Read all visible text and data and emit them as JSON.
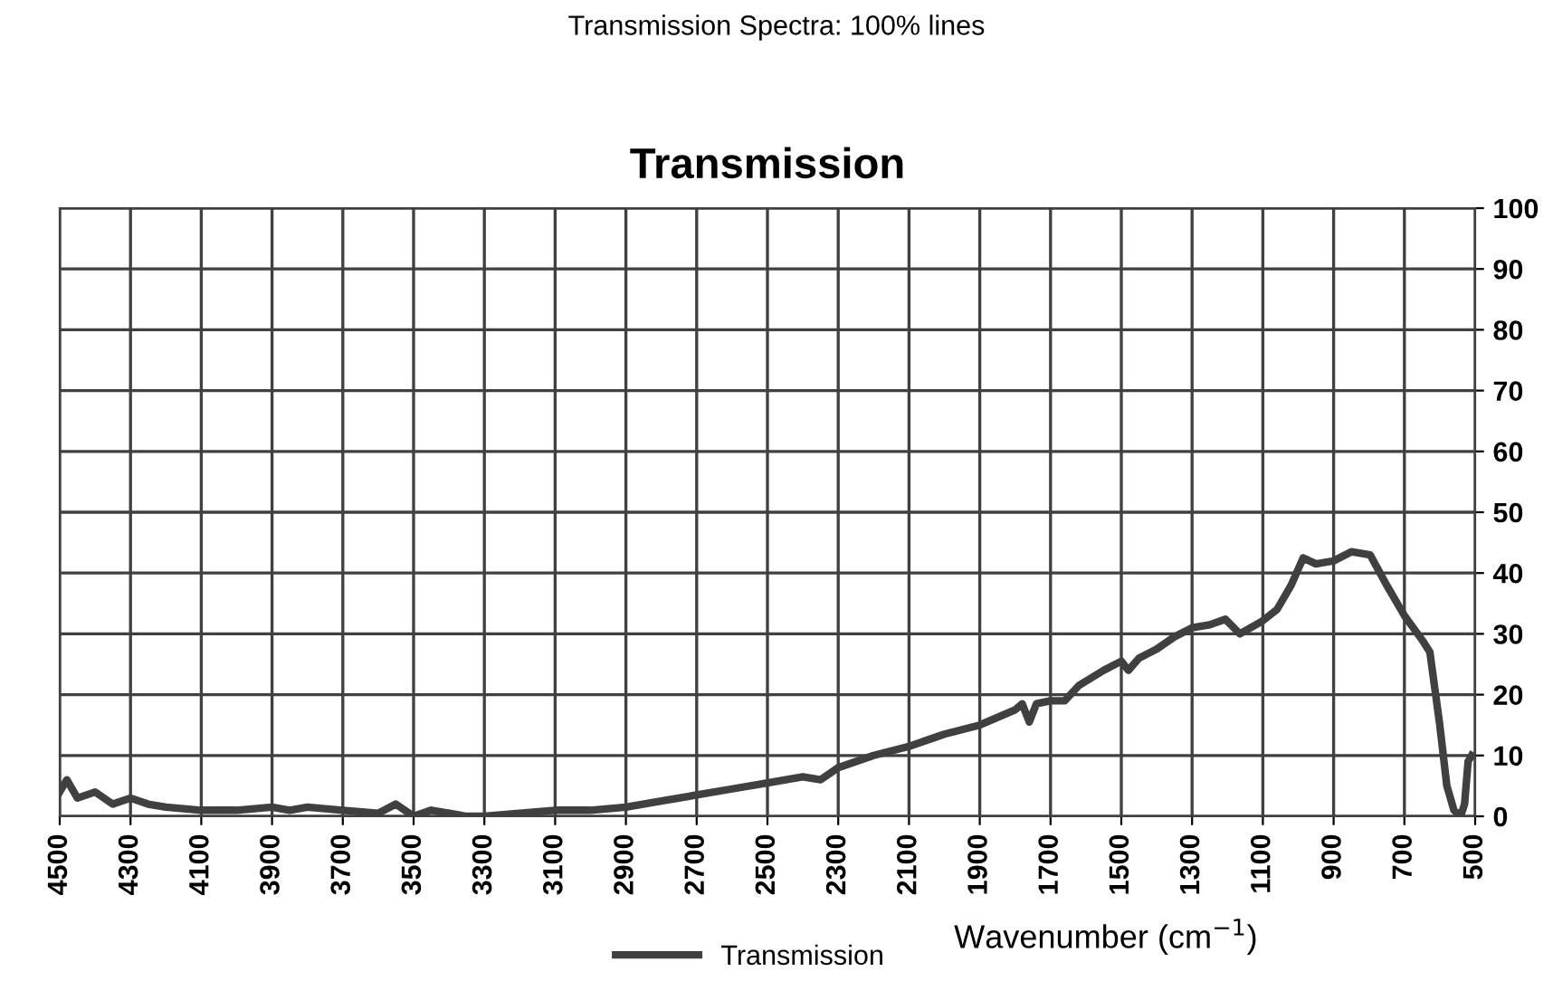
{
  "chart_data": {
    "type": "line",
    "title": "Transmission",
    "subtitle": "Transmission Spectra: 100% lines",
    "xlabel": "Wavenumber (cm$^{−1}$)",
    "x": [
      4500,
      4480,
      4450,
      4400,
      4350,
      4300,
      4250,
      4200,
      4100,
      4000,
      3900,
      3850,
      3800,
      3700,
      3600,
      3550,
      3500,
      3450,
      3400,
      3350,
      3300,
      3200,
      3100,
      3000,
      2900,
      2800,
      2700,
      2600,
      2500,
      2400,
      2350,
      2300,
      2200,
      2100,
      2000,
      1900,
      1800,
      1780,
      1760,
      1740,
      1700,
      1660,
      1620,
      1550,
      1500,
      1480,
      1450,
      1400,
      1350,
      1300,
      1250,
      1206,
      1165,
      1104,
      1060,
      1020,
      986,
      950,
      900,
      850,
      797,
      750,
      700,
      650,
      628,
      600,
      580,
      560,
      541,
      530,
      520,
      510
    ],
    "series": [
      {
        "name": "Transmission",
        "color": "#404040",
        "values": [
          4,
          6,
          3,
          4,
          2,
          3,
          2,
          1.5,
          1,
          1,
          1.5,
          1,
          1.5,
          1,
          0.5,
          2,
          0,
          1,
          0.5,
          0,
          0,
          0.5,
          1,
          1,
          1.5,
          2.5,
          3.5,
          4.5,
          5.5,
          6.5,
          6,
          8,
          10,
          11.5,
          13.5,
          15,
          17.5,
          18.5,
          15.5,
          18.5,
          19,
          19,
          21.5,
          24,
          25.5,
          24,
          26,
          27.5,
          29.5,
          31,
          31.5,
          32.4,
          30,
          32,
          34,
          38,
          42.5,
          41.5,
          42,
          43.5,
          43,
          38,
          33,
          29,
          27,
          15,
          5,
          1,
          0,
          2,
          9,
          10
        ]
      }
    ],
    "xlim": [
      4500,
      500
    ],
    "xticks": [
      4500,
      4300,
      4100,
      3900,
      3700,
      3500,
      3300,
      3100,
      2900,
      2700,
      2500,
      2300,
      2100,
      1900,
      1700,
      1500,
      1300,
      1100,
      900,
      700,
      500
    ],
    "ylim": [
      0,
      100
    ],
    "yticks": [
      0,
      10,
      20,
      30,
      40,
      50,
      60,
      70,
      80,
      90,
      100
    ],
    "grid": true,
    "legend": "bottom",
    "line_style": "solid",
    "marker": "none"
  }
}
